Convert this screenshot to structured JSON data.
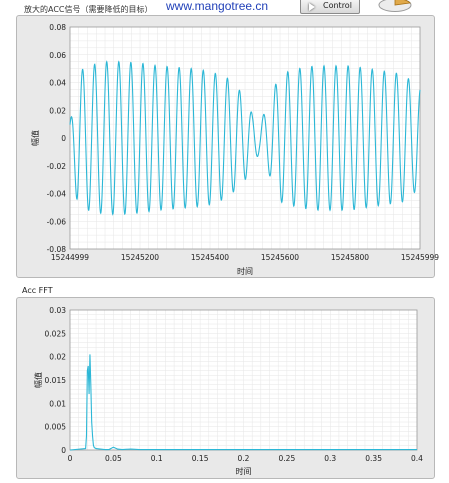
{
  "header": {
    "title": "放大的ACC信号（需要降低的目标）",
    "watermark": "www.mangotree.cn",
    "control_button_label": "Control"
  },
  "colors": {
    "signal": "#2cb7d6",
    "panel_bg": "#e9e9e9",
    "plot_bg": "#ffffff",
    "grid": "#e6e6e6"
  },
  "chart1": {
    "ylabel": "幅值",
    "xlabel": "时间",
    "yticks": [
      "0.08",
      "0.06",
      "0.04",
      "0.02",
      "0",
      "-0.02",
      "-0.04",
      "-0.06",
      "-0.08"
    ],
    "xticks": [
      "15244999",
      "15245200",
      "15245400",
      "15245600",
      "15245800",
      "15245999"
    ]
  },
  "chart2": {
    "panel_title": "Acc FFT",
    "ylabel": "幅值",
    "xlabel": "时间",
    "yticks": [
      "0.03",
      "0.025",
      "0.02",
      "0.015",
      "0.01",
      "0.005",
      "0"
    ],
    "xticks": [
      "0",
      "0.05",
      "0.1",
      "0.15",
      "0.2",
      "0.25",
      "0.3",
      "0.35",
      "0.4"
    ]
  },
  "chart_data": [
    {
      "type": "line",
      "xlim": [
        15244999,
        15245999
      ],
      "ylim": [
        -0.08,
        0.08
      ],
      "grid": true,
      "series": [
        {
          "x": [
            15244999,
            15245020,
            15245050,
            15245100,
            15245150,
            15245200,
            15245250,
            15245300,
            15245350,
            15245400,
            15245450,
            15245500,
            15245520,
            15245540,
            15245560,
            15245580,
            15245600,
            15245650,
            15245700,
            15245750,
            15245800,
            15245850,
            15245900,
            15245950,
            15245999
          ],
          "y_envelope": [
            0.01,
            0.047,
            0.052,
            0.055,
            0.055,
            0.054,
            0.052,
            0.051,
            0.05,
            0.048,
            0.043,
            0.03,
            0.017,
            0.012,
            0.02,
            0.035,
            0.046,
            0.05,
            0.052,
            0.052,
            0.052,
            0.05,
            0.048,
            0.046,
            0.036
          ],
          "cycles": 29
        }
      ]
    },
    {
      "type": "line",
      "xlim": [
        0,
        0.4
      ],
      "ylim": [
        0,
        0.03
      ],
      "grid": true,
      "series": [
        {
          "x": [
            0,
            0.018,
            0.019,
            0.02,
            0.021,
            0.022,
            0.023,
            0.024,
            0.025,
            0.026,
            0.027,
            0.028,
            0.03,
            0.035,
            0.04,
            0.045,
            0.05,
            0.055,
            0.06,
            0.07,
            0.08,
            0.4
          ],
          "y": [
            0,
            0.0003,
            0.003,
            0.017,
            0.018,
            0.012,
            0.0205,
            0.014,
            0.006,
            0.003,
            0.001,
            0.0005,
            0.0003,
            0.0002,
            0.0001,
            0.0001,
            0.0006,
            0.0002,
            0.0001,
            0.0002,
            0.0001,
            0.0001
          ]
        }
      ]
    }
  ]
}
